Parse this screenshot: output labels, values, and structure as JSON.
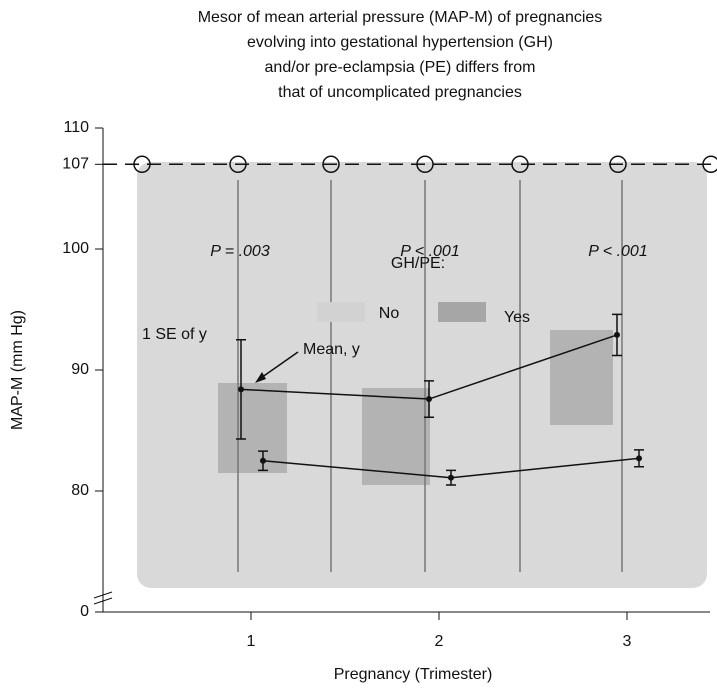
{
  "chart_data": {
    "type": "line",
    "title": [
      "Mesor of mean arterial pressure (MAP-M) of pregnancies",
      "evolving into gestational hypertension (GH)",
      "and/or pre-eclampsia (PE) differs from",
      "that of uncomplicated pregnancies"
    ],
    "x_label": "Pregnancy (Trimester)",
    "y_label": "MAP-M (mm Hg)",
    "categories": [
      "1",
      "2",
      "3"
    ],
    "series": [
      {
        "name": "No",
        "color": "#d2d2d2",
        "values": [
          82.5,
          81.1,
          82.7
        ],
        "errors": [
          0.8,
          0.6,
          0.7
        ]
      },
      {
        "name": "Yes",
        "color": "#a6a6a6",
        "values": [
          88.4,
          87.6,
          92.9
        ],
        "errors": [
          4.1,
          1.5,
          1.7
        ]
      }
    ],
    "legend_title": "GH/PE:",
    "annotations": [
      "P = .003",
      "P < .001",
      "P < .001"
    ],
    "se_label": "1 SE of y",
    "mean_label": "Mean, y",
    "ylim": [
      0,
      110
    ],
    "yticks": [
      0,
      80,
      90,
      100,
      107,
      110
    ],
    "axis_break": true,
    "reference_y": 107
  }
}
